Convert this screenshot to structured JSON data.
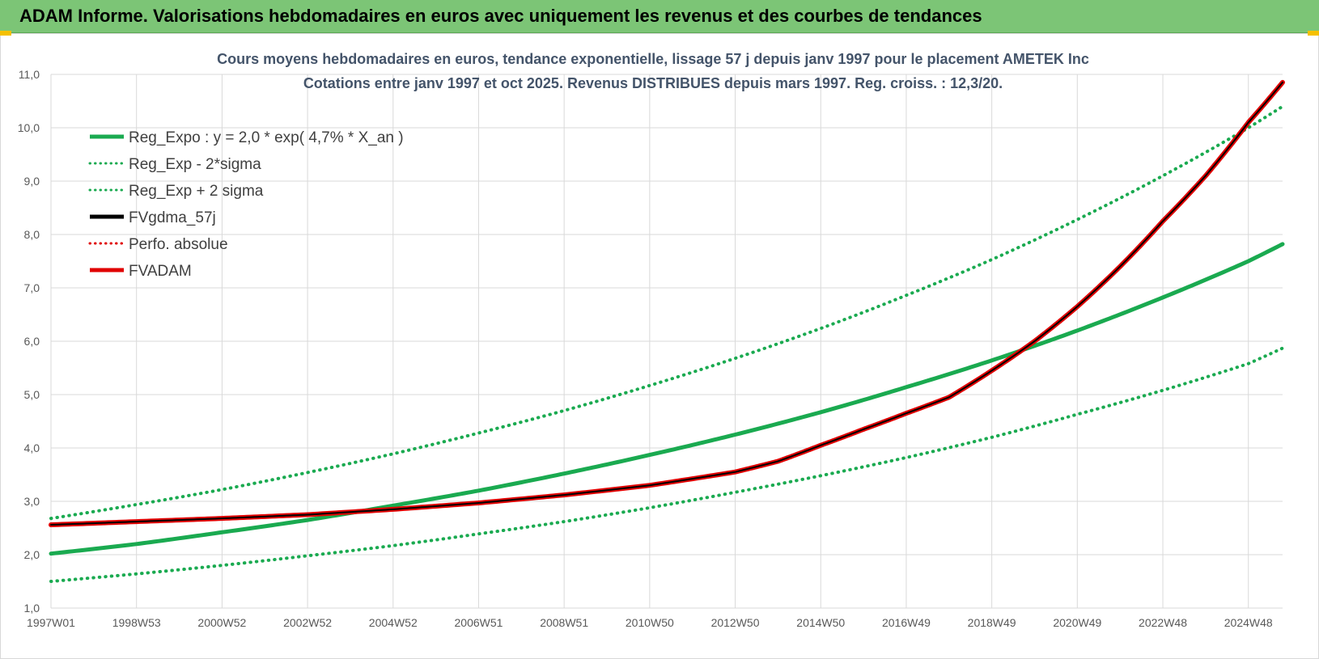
{
  "header": {
    "title": "ADAM Informe. Valorisations hebdomadaires en euros avec uniquement les revenus et des courbes de tendances"
  },
  "chart_data": {
    "type": "line",
    "title_lines": [
      "Cours moyens hebdomadaires en euros, tendance exponentielle, lissage 57 j depuis janv 1997 pour le placement AMETEK Inc",
      "Cotations entre janv 1997 et oct 2025. Revenus DISTRIBUES depuis mars 1997.  Reg. croiss. : 12,3/20."
    ],
    "xlabel": "",
    "ylabel": "",
    "ylim": [
      1.0,
      11.0
    ],
    "xlim": [
      1997.0,
      2025.8
    ],
    "y_ticks": [
      "1,0",
      "2,0",
      "3,0",
      "4,0",
      "5,0",
      "6,0",
      "7,0",
      "8,0",
      "9,0",
      "10,0",
      "11,0"
    ],
    "x_ticks": [
      {
        "label": "1997W01",
        "x": 1997.0
      },
      {
        "label": "1998W53",
        "x": 1999.0
      },
      {
        "label": "2000W52",
        "x": 2001.0
      },
      {
        "label": "2002W52",
        "x": 2003.0
      },
      {
        "label": "2004W52",
        "x": 2005.0
      },
      {
        "label": "2006W51",
        "x": 2007.0
      },
      {
        "label": "2008W51",
        "x": 2009.0
      },
      {
        "label": "2010W50",
        "x": 2011.0
      },
      {
        "label": "2012W50",
        "x": 2013.0
      },
      {
        "label": "2014W50",
        "x": 2015.0
      },
      {
        "label": "2016W49",
        "x": 2017.0
      },
      {
        "label": "2018W49",
        "x": 2019.0
      },
      {
        "label": "2020W49",
        "x": 2021.0
      },
      {
        "label": "2022W48",
        "x": 2023.0
      },
      {
        "label": "2024W48",
        "x": 2025.0
      }
    ],
    "grid": true,
    "legend_position": "top-left",
    "series": [
      {
        "name": "Reg_Expo : y = 2,0 * exp( 4,7% *  X_an )",
        "color": "#1aaa50",
        "style": "solid",
        "x": [
          1997,
          1999,
          2001,
          2003,
          2005,
          2007,
          2009,
          2011,
          2013,
          2015,
          2017,
          2019,
          2021,
          2023,
          2025,
          2025.8
        ],
        "y": [
          2.02,
          2.2,
          2.42,
          2.65,
          2.92,
          3.2,
          3.52,
          3.87,
          4.25,
          4.67,
          5.14,
          5.64,
          6.2,
          6.82,
          7.5,
          7.82
        ]
      },
      {
        "name": "Reg_Exp - 2*sigma",
        "color": "#1aaa50",
        "style": "dotted",
        "x": [
          1997,
          1999,
          2001,
          2003,
          2005,
          2007,
          2009,
          2011,
          2013,
          2015,
          2017,
          2019,
          2021,
          2023,
          2025,
          2025.8
        ],
        "y": [
          1.5,
          1.64,
          1.8,
          1.98,
          2.17,
          2.39,
          2.62,
          2.88,
          3.17,
          3.48,
          3.82,
          4.2,
          4.63,
          5.08,
          5.58,
          5.87
        ]
      },
      {
        "name": "Reg_Exp + 2 sigma",
        "color": "#1aaa50",
        "style": "dotted",
        "x": [
          1997,
          1999,
          2001,
          2003,
          2005,
          2007,
          2009,
          2011,
          2013,
          2015,
          2017,
          2019,
          2021,
          2023,
          2025,
          2025.8
        ],
        "y": [
          2.68,
          2.94,
          3.22,
          3.54,
          3.89,
          4.28,
          4.7,
          5.17,
          5.68,
          6.24,
          6.86,
          7.53,
          8.28,
          9.1,
          10.0,
          10.4
        ]
      },
      {
        "name": "FVgdma_57j",
        "color": "#000000",
        "style": "solid",
        "x": [
          1997,
          1999,
          2001,
          2003,
          2005,
          2007,
          2009,
          2011,
          2013,
          2014,
          2015,
          2016,
          2017,
          2018,
          2019,
          2020,
          2021,
          2022,
          2023,
          2024,
          2025,
          2025.8
        ],
        "y": [
          2.56,
          2.62,
          2.68,
          2.75,
          2.85,
          2.97,
          3.12,
          3.3,
          3.55,
          3.75,
          4.05,
          4.35,
          4.65,
          4.95,
          5.45,
          6.0,
          6.65,
          7.4,
          8.25,
          9.1,
          10.1,
          10.85
        ]
      },
      {
        "name": "Perfo. absolue",
        "color": "#e00000",
        "style": "dotted",
        "x": [
          1997,
          1999,
          2001,
          2003,
          2005,
          2007,
          2009,
          2011,
          2013,
          2014,
          2015,
          2016,
          2017,
          2018,
          2019,
          2020,
          2021,
          2022,
          2023,
          2024,
          2025,
          2025.8
        ],
        "y": [
          2.56,
          2.62,
          2.68,
          2.75,
          2.85,
          2.97,
          3.12,
          3.3,
          3.55,
          3.75,
          4.05,
          4.35,
          4.65,
          4.95,
          5.45,
          6.0,
          6.65,
          7.4,
          8.25,
          9.1,
          10.1,
          10.85
        ]
      },
      {
        "name": "FVADAM",
        "color": "#e00000",
        "style": "solid",
        "x": [
          1997,
          1999,
          2001,
          2003,
          2005,
          2007,
          2009,
          2011,
          2013,
          2014,
          2015,
          2016,
          2017,
          2018,
          2019,
          2020,
          2021,
          2022,
          2023,
          2024,
          2025,
          2025.8
        ],
        "y": [
          2.56,
          2.62,
          2.68,
          2.75,
          2.85,
          2.97,
          3.12,
          3.3,
          3.55,
          3.75,
          4.05,
          4.35,
          4.65,
          4.95,
          5.45,
          6.0,
          6.65,
          7.4,
          8.25,
          9.1,
          10.1,
          10.85
        ]
      }
    ]
  }
}
